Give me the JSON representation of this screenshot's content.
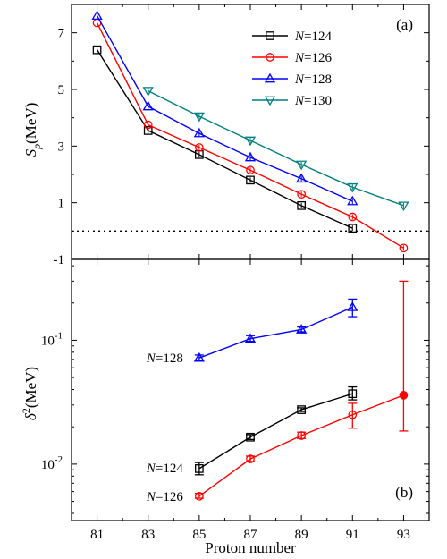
{
  "chart_data": [
    {
      "panel_label": "(a)",
      "type": "line",
      "ylabel_main": "S",
      "ylabel_sub": "p",
      "ylabel_unit": "(MeV)",
      "xlim": [
        80,
        94
      ],
      "ylim": [
        -1,
        8
      ],
      "y_ticks": [
        -1,
        1,
        3,
        5,
        7
      ],
      "reference_line": 0,
      "legend_position": "top-right",
      "series": [
        {
          "name_prefix": "N",
          "name_suffix": "=124",
          "color": "#000000",
          "marker": "square",
          "x": [
            81,
            83,
            85,
            87,
            89,
            91
          ],
          "y": [
            6.4,
            3.55,
            2.7,
            1.8,
            0.9,
            0.1
          ]
        },
        {
          "name_prefix": "N",
          "name_suffix": "=126",
          "color": "#ff0000",
          "marker": "circle",
          "x": [
            81,
            83,
            85,
            87,
            89,
            91,
            93
          ],
          "y": [
            7.35,
            3.75,
            2.95,
            2.15,
            1.3,
            0.5,
            -0.6
          ]
        },
        {
          "name_prefix": "N",
          "name_suffix": "=128",
          "color": "#0000ff",
          "marker": "triangle-up",
          "x": [
            81,
            83,
            85,
            87,
            89,
            91
          ],
          "y": [
            7.6,
            4.4,
            3.45,
            2.6,
            1.85,
            1.05
          ]
        },
        {
          "name_prefix": "N",
          "name_suffix": "=130",
          "color": "#007f7f",
          "marker": "triangle-down",
          "x": [
            83,
            85,
            87,
            89,
            91,
            93
          ],
          "y": [
            4.95,
            4.05,
            3.2,
            2.35,
            1.55,
            0.9
          ]
        }
      ]
    },
    {
      "panel_label": "(b)",
      "type": "line",
      "yscale": "log",
      "ylabel_main": "δ",
      "ylabel_sup": "2",
      "ylabel_unit": "(MeV)",
      "xlabel": "Proton number",
      "xlim": [
        80,
        94
      ],
      "ylim": [
        0.0035,
        0.45
      ],
      "y_ticks": [
        {
          "base": "10",
          "exp": "-2",
          "value": 0.01
        },
        {
          "base": "10",
          "exp": "-1",
          "value": 0.1
        }
      ],
      "x_ticks": [
        81,
        83,
        85,
        87,
        89,
        91,
        93
      ],
      "series": [
        {
          "label_prefix": "N",
          "label_suffix": "=128",
          "color": "#0000ff",
          "marker": "triangle-up",
          "x": [
            85,
            87,
            89,
            91
          ],
          "y": [
            0.072,
            0.103,
            0.122,
            0.185
          ],
          "err_lo": [
            0.068,
            0.098,
            0.117,
            0.155
          ],
          "err_hi": [
            0.076,
            0.109,
            0.128,
            0.215
          ],
          "label_x": 85,
          "label_y": 0.072
        },
        {
          "label_prefix": "N",
          "label_suffix": "=124",
          "color": "#000000",
          "marker": "square",
          "x": [
            85,
            87,
            89,
            91
          ],
          "y": [
            0.0092,
            0.0165,
            0.0275,
            0.037
          ],
          "err_lo": [
            0.0082,
            0.0158,
            0.0266,
            0.033
          ],
          "err_hi": [
            0.0103,
            0.0173,
            0.0285,
            0.042
          ],
          "label_x": 85,
          "label_y": 0.0093
        },
        {
          "label_prefix": "N",
          "label_suffix": "=126",
          "color": "#ff0000",
          "marker": "circle",
          "x": [
            85,
            87,
            89,
            91,
            93
          ],
          "y": [
            0.0055,
            0.011,
            0.017,
            0.025,
            0.036
          ],
          "err_lo": [
            0.0053,
            0.0105,
            0.0161,
            0.0195,
            0.0185
          ],
          "err_hi": [
            0.0058,
            0.0116,
            0.0181,
            0.031,
            0.3
          ],
          "filled_last": true,
          "label_x": 85,
          "label_y": 0.0055
        }
      ]
    }
  ]
}
